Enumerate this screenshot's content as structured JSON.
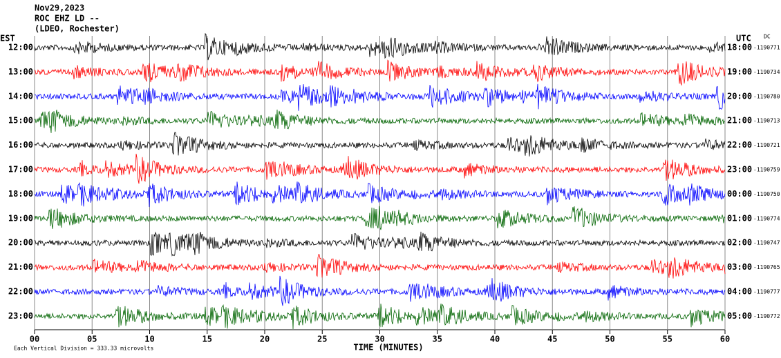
{
  "chart_data": {
    "type": "helicorder",
    "title": [
      "Nov29,2023",
      "ROC EHZ LD --",
      "(LDEO, Rochester)"
    ],
    "left_axis_label": "EST",
    "right_axis_label": "UTC",
    "dc_label": "DC",
    "x_label": "TIME (MINUTES)",
    "footer": "Each Vertical Division =  333.33 microvolts",
    "xlim": [
      0,
      60
    ],
    "xticks": [
      {
        "value": 0,
        "label": "00"
      },
      {
        "value": 5,
        "label": "05"
      },
      10,
      15,
      20,
      25,
      30,
      35,
      40,
      45,
      50,
      55,
      60
    ],
    "grid": true,
    "rows": [
      {
        "est": "12:00",
        "utc": "18:00",
        "dc": -1190771,
        "color": "#000000"
      },
      {
        "est": "13:00",
        "utc": "19:00",
        "dc": -1190734,
        "color": "#ff0000"
      },
      {
        "est": "14:00",
        "utc": "20:00",
        "dc": -1190780,
        "color": "#0000ff"
      },
      {
        "est": "15:00",
        "utc": "21:00",
        "dc": -1190713,
        "color": "#006400"
      },
      {
        "est": "16:00",
        "utc": "22:00",
        "dc": -1190721,
        "color": "#000000"
      },
      {
        "est": "17:00",
        "utc": "23:00",
        "dc": -1190759,
        "color": "#ff0000"
      },
      {
        "est": "18:00",
        "utc": "00:00",
        "dc": -1190750,
        "color": "#0000ff"
      },
      {
        "est": "19:00",
        "utc": "01:00",
        "dc": -1190774,
        "color": "#006400"
      },
      {
        "est": "20:00",
        "utc": "02:00",
        "dc": -1190747,
        "color": "#000000"
      },
      {
        "est": "21:00",
        "utc": "03:00",
        "dc": -1190765,
        "color": "#ff0000"
      },
      {
        "est": "22:00",
        "utc": "04:00",
        "dc": -1190777,
        "color": "#0000ff"
      },
      {
        "est": "23:00",
        "utc": "05:00",
        "dc": -1190772,
        "color": "#006400"
      }
    ]
  }
}
